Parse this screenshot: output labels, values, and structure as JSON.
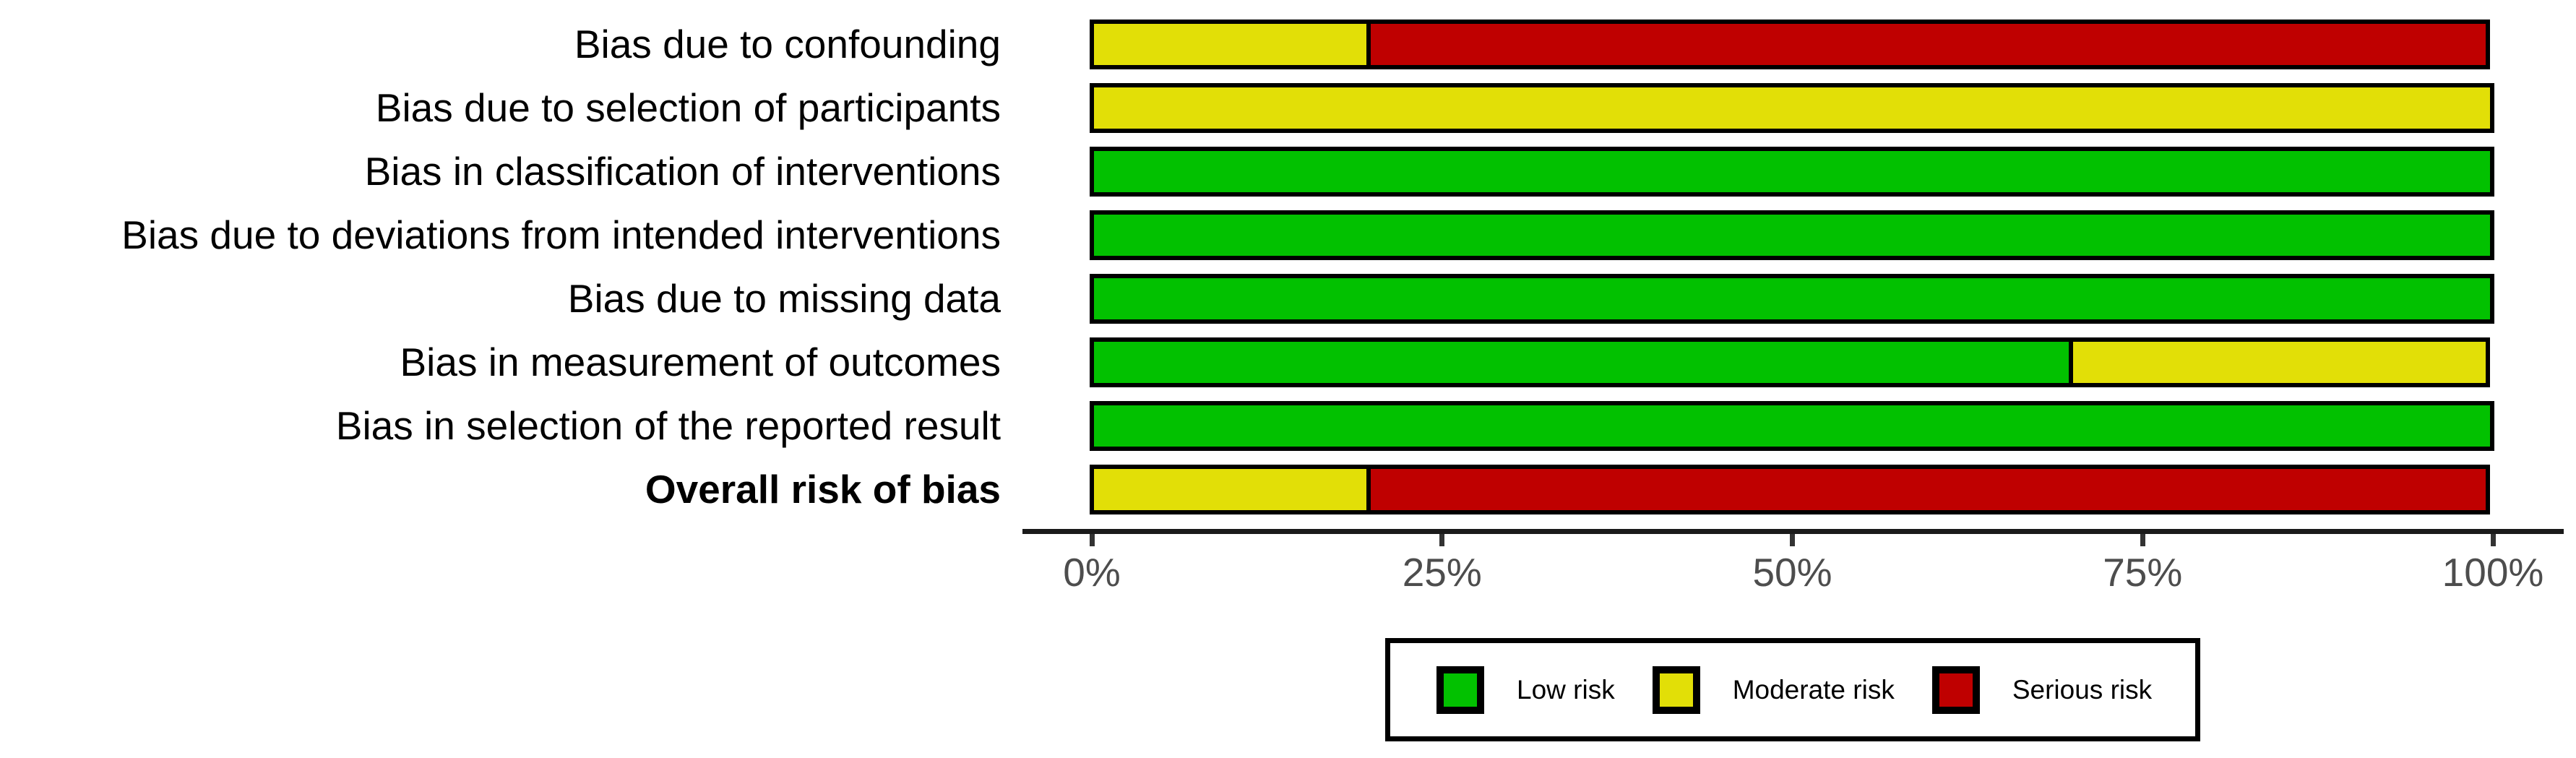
{
  "chart_data": {
    "type": "bar",
    "orientation": "horizontal",
    "stacked": true,
    "units": "percent",
    "title": "",
    "xlabel": "",
    "ylabel": "",
    "xlim": [
      0,
      100
    ],
    "x_tick_labels": [
      "0%",
      "25%",
      "50%",
      "75%",
      "100%"
    ],
    "grid": false,
    "legend_position": "bottom",
    "categories": [
      "Bias due to confounding",
      "Bias due to selection of participants",
      "Bias in classification of interventions",
      "Bias due to deviations from intended interventions",
      "Bias due to missing data",
      "Bias in measurement of outcomes",
      "Bias in selection of the reported result",
      "Overall risk of bias"
    ],
    "bold_category": "Overall risk of bias",
    "series": [
      {
        "name": "Low risk",
        "color": "#02C100",
        "values": [
          0,
          0,
          100,
          100,
          100,
          70,
          100,
          0
        ]
      },
      {
        "name": "Moderate risk",
        "color": "#E2DF07",
        "values": [
          20,
          100,
          0,
          0,
          0,
          30,
          0,
          20
        ]
      },
      {
        "name": "Serious risk",
        "color": "#BF0000",
        "values": [
          80,
          0,
          0,
          0,
          0,
          0,
          0,
          80
        ]
      }
    ],
    "colors": {
      "low_risk": "#02C100",
      "moderate_risk": "#E2DF07",
      "serious_risk": "#BF0000",
      "axis_text": "#4d4d4d",
      "axis_line": "#1a1a1a",
      "bar_border": "#000000"
    }
  }
}
